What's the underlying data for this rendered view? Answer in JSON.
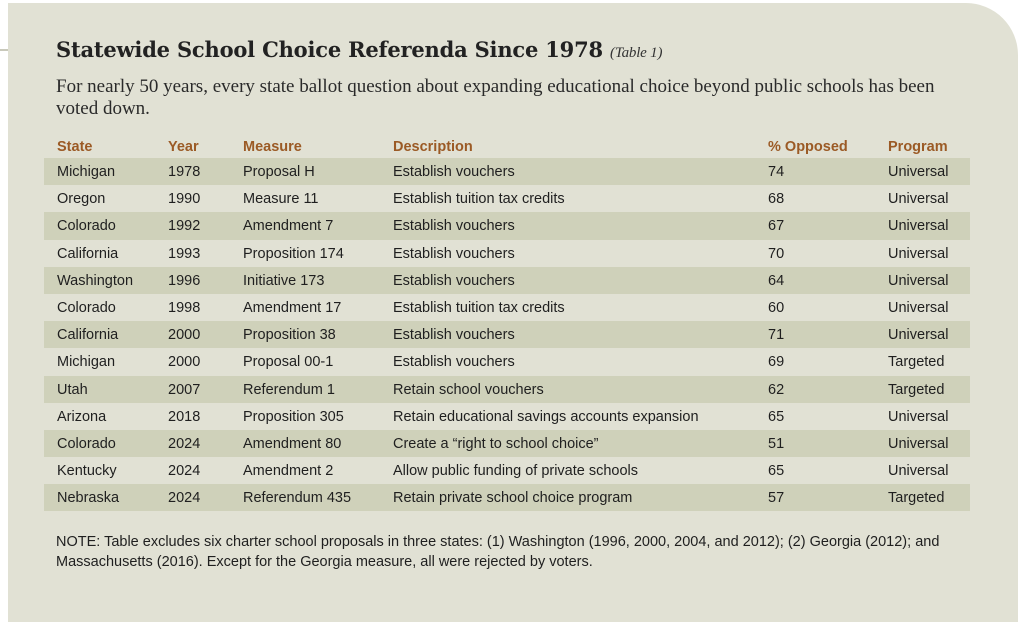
{
  "title": {
    "main": "Statewide School Choice Referenda Since 1978",
    "tag": "(Table 1)"
  },
  "subtitle": "For nearly 50 years, every state ballot question about expanding educational choice beyond public schools has been voted down.",
  "table": {
    "columns": [
      "State",
      "Year",
      "Measure",
      "Description",
      "% Opposed",
      "Program"
    ],
    "rows": [
      {
        "state": "Michigan",
        "year": "1978",
        "measure": "Proposal H",
        "description": "Establish vouchers",
        "opposed": "74",
        "program": "Universal"
      },
      {
        "state": "Oregon",
        "year": "1990",
        "measure": "Measure 11",
        "description": "Establish tuition tax credits",
        "opposed": "68",
        "program": "Universal"
      },
      {
        "state": "Colorado",
        "year": "1992",
        "measure": "Amendment 7",
        "description": "Establish vouchers",
        "opposed": "67",
        "program": "Universal"
      },
      {
        "state": "California",
        "year": "1993",
        "measure": "Proposition 174",
        "description": "Establish vouchers",
        "opposed": "70",
        "program": "Universal"
      },
      {
        "state": "Washington",
        "year": "1996",
        "measure": "Initiative 173",
        "description": "Establish vouchers",
        "opposed": "64",
        "program": "Universal"
      },
      {
        "state": "Colorado",
        "year": "1998",
        "measure": "Amendment 17",
        "description": "Establish tuition tax credits",
        "opposed": "60",
        "program": "Universal"
      },
      {
        "state": "California",
        "year": "2000",
        "measure": "Proposition 38",
        "description": "Establish vouchers",
        "opposed": "71",
        "program": "Universal"
      },
      {
        "state": "Michigan",
        "year": "2000",
        "measure": "Proposal 00-1",
        "description": "Establish vouchers",
        "opposed": "69",
        "program": "Targeted"
      },
      {
        "state": "Utah",
        "year": "2007",
        "measure": "Referendum 1",
        "description": "Retain school vouchers",
        "opposed": "62",
        "program": "Targeted"
      },
      {
        "state": "Arizona",
        "year": "2018",
        "measure": "Proposition 305",
        "description": "Retain educational savings accounts expansion",
        "opposed": "65",
        "program": "Universal"
      },
      {
        "state": "Colorado",
        "year": "2024",
        "measure": "Amendment 80",
        "description": "Create a “right to school choice”",
        "opposed": "51",
        "program": "Universal"
      },
      {
        "state": "Kentucky",
        "year": "2024",
        "measure": "Amendment 2",
        "description": "Allow public funding of private schools",
        "opposed": "65",
        "program": "Universal"
      },
      {
        "state": "Nebraska",
        "year": "2024",
        "measure": "Referendum 435",
        "description": "Retain private school choice program",
        "opposed": "57",
        "program": "Targeted"
      }
    ]
  },
  "note": "NOTE: Table excludes six charter school proposals in three states: (1) Washington (1996, 2000, 2004, and 2012); (2) Georgia (2012); and Massachusetts (2016). Except for the Georgia measure, all were rejected by voters.",
  "colors": {
    "panel": "#e1e1d4",
    "row_shade": "#cfd1ba",
    "header_text": "#9b5a25"
  }
}
